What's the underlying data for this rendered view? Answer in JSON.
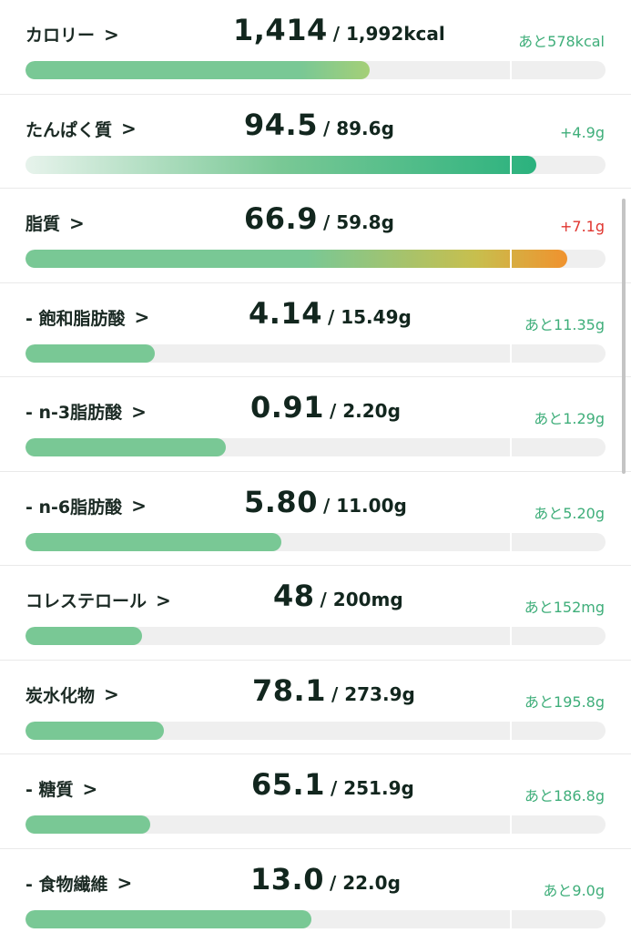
{
  "colors": {
    "bar_green": "#79c895",
    "bar_dark_green": "#2bb27e",
    "bar_track": "#efefef",
    "over_red": "#e0352f",
    "remain_green": "#3fae7a",
    "over_orange": "#f0922e"
  },
  "nutrients": [
    {
      "key": "calorie",
      "label": "カロリー",
      "chevron": ">",
      "current": "1,414",
      "target": "/ 1,992kcal",
      "diff": "あと578kcal",
      "over": false,
      "ratio": 0.7098,
      "fill": "gradient-lime"
    },
    {
      "key": "protein",
      "label": "たんぱく質",
      "chevron": ">",
      "current": "94.5",
      "target": "/ 89.6g",
      "diff": "+4.9g",
      "over": false,
      "ratio": 1.0547,
      "fill": "gradient-green"
    },
    {
      "key": "fat",
      "label": "脂質",
      "chevron": ">",
      "current": "66.9",
      "target": "/ 59.8g",
      "diff": "+7.1g",
      "over": true,
      "ratio": 1.1187,
      "fill": "gradient-orange"
    },
    {
      "key": "saturated_fat",
      "label": "- 飽和脂肪酸",
      "chevron": ">",
      "current": "4.14",
      "target": "/ 15.49g",
      "diff": "あと11.35g",
      "over": false,
      "ratio": 0.2673,
      "fill": "solid"
    },
    {
      "key": "n3",
      "label": "- n-3脂肪酸",
      "chevron": ">",
      "current": "0.91",
      "target": "/ 2.20g",
      "diff": "あと1.29g",
      "over": false,
      "ratio": 0.4136,
      "fill": "solid"
    },
    {
      "key": "n6",
      "label": "- n-6脂肪酸",
      "chevron": ">",
      "current": "5.80",
      "target": "/ 11.00g",
      "diff": "あと5.20g",
      "over": false,
      "ratio": 0.5273,
      "fill": "solid"
    },
    {
      "key": "cholesterol",
      "label": "コレステロール",
      "chevron": ">",
      "current": "48",
      "target": "/ 200mg",
      "diff": "あと152mg",
      "over": false,
      "ratio": 0.24,
      "fill": "solid"
    },
    {
      "key": "carbohydrate",
      "label": "炭水化物",
      "chevron": ">",
      "current": "78.1",
      "target": "/ 273.9g",
      "diff": "あと195.8g",
      "over": false,
      "ratio": 0.2851,
      "fill": "solid"
    },
    {
      "key": "sugar",
      "label": "- 糖質",
      "chevron": ">",
      "current": "65.1",
      "target": "/ 251.9g",
      "diff": "あと186.8g",
      "over": false,
      "ratio": 0.2584,
      "fill": "solid"
    },
    {
      "key": "fiber",
      "label": "- 食物繊維",
      "chevron": ">",
      "current": "13.0",
      "target": "/ 22.0g",
      "diff": "あと9.0g",
      "over": false,
      "ratio": 0.5909,
      "fill": "solid"
    }
  ]
}
